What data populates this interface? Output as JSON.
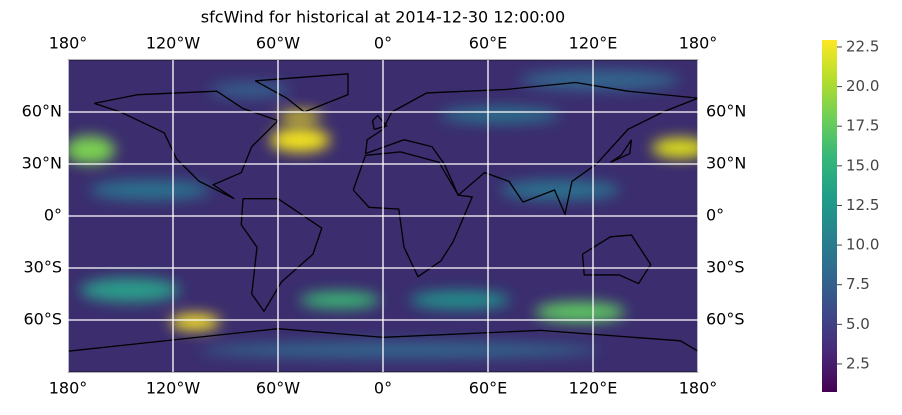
{
  "chart_data": {
    "type": "map",
    "title": "sfcWind for historical at 2014-12-30 12:00:00",
    "xlim": [
      -180,
      180
    ],
    "ylim": [
      -90,
      90
    ],
    "xticks": [
      {
        "value": -180,
        "label": "180°"
      },
      {
        "value": -120,
        "label": "120°W"
      },
      {
        "value": -60,
        "label": "60°W"
      },
      {
        "value": 0,
        "label": "0°"
      },
      {
        "value": 60,
        "label": "60°E"
      },
      {
        "value": 120,
        "label": "120°E"
      },
      {
        "value": 180,
        "label": "180°"
      }
    ],
    "yticks": [
      {
        "value": 60,
        "label": "60°N"
      },
      {
        "value": 30,
        "label": "30°N"
      },
      {
        "value": 0,
        "label": "0°"
      },
      {
        "value": -30,
        "label": "30°S"
      },
      {
        "value": -60,
        "label": "60°S"
      }
    ],
    "grid": true,
    "colorbar": {
      "colormap": "viridis",
      "clim": [
        0.73,
        22.94
      ],
      "ticks": [
        2.5,
        {
          "value": 5,
          "label": "5.0"
        },
        7.5,
        {
          "value": 10,
          "label": "10.0"
        },
        12.5,
        {
          "value": 15,
          "label": "15.0"
        },
        17.5,
        {
          "value": 20,
          "label": "20.0"
        },
        22.5
      ]
    }
  }
}
